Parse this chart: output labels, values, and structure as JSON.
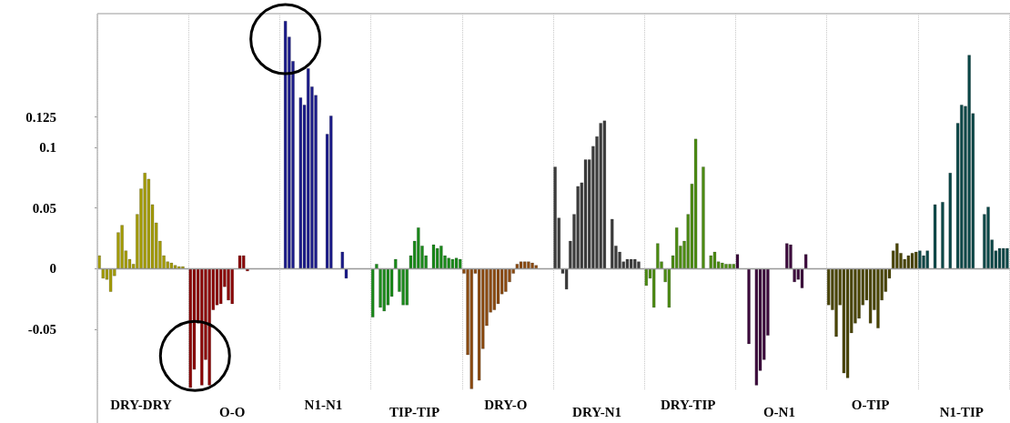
{
  "chart_data": {
    "type": "bar",
    "categories": [
      null,
      null,
      null,
      null,
      null,
      null,
      null,
      null,
      null,
      null,
      null,
      "DRY-DRY",
      null,
      null,
      null,
      null,
      null,
      null,
      null,
      null,
      null,
      null,
      null,
      null,
      null,
      null,
      null,
      null,
      null,
      null,
      null,
      null,
      null,
      null,
      null,
      "O-O",
      null,
      null,
      null,
      null,
      null,
      null,
      null,
      null,
      null,
      null,
      null,
      null,
      null,
      null,
      null,
      null,
      null,
      null,
      null,
      null,
      null,
      null,
      null,
      "N1-N1",
      null,
      null,
      null,
      null,
      null,
      null,
      null,
      null,
      null,
      null,
      null,
      null,
      null,
      null,
      null,
      null,
      null,
      null,
      null,
      null,
      null,
      null,
      null,
      "TIP-TIP",
      null,
      null,
      null,
      null,
      null,
      null,
      null,
      null,
      null,
      null,
      null,
      null,
      null,
      null,
      null,
      null,
      null,
      null,
      null,
      null,
      null,
      null,
      null,
      "DRY-O",
      null,
      null,
      null,
      null,
      null,
      null,
      null,
      null,
      null,
      null,
      null,
      null,
      null,
      null,
      null,
      null,
      null,
      null,
      null,
      null,
      null,
      null,
      null,
      "DRY-N1",
      null,
      null,
      null,
      null,
      null,
      null,
      null,
      null,
      null,
      null,
      null,
      null,
      null,
      null,
      null,
      null,
      null,
      null,
      null,
      null,
      null,
      null,
      null,
      "DRY-TIP",
      null,
      null,
      null,
      null,
      null,
      null,
      null,
      null,
      null,
      null,
      null,
      null,
      null,
      null,
      null,
      null,
      null,
      null,
      null,
      null,
      null,
      null,
      null,
      "O-N1",
      null,
      null,
      null,
      null,
      null,
      null,
      null,
      null,
      null,
      null,
      null,
      null,
      null,
      null,
      null,
      null,
      null,
      null,
      null,
      null,
      null,
      null,
      null,
      "O-TIP",
      null,
      null,
      null,
      null,
      null,
      null,
      null,
      null,
      null,
      null,
      null,
      null,
      null,
      null,
      null,
      null,
      null,
      null,
      null,
      null,
      null,
      null,
      null,
      "N1-TIP",
      null,
      null,
      null,
      null,
      null,
      null,
      null,
      null,
      null,
      null,
      null,
      null
    ],
    "values": [
      0.011,
      -0.008,
      -0.009,
      -0.019,
      -0.006,
      0.03,
      0.036,
      0.015,
      0.008,
      0.004,
      0.045,
      0.066,
      0.079,
      0.074,
      0.053,
      0.038,
      0.023,
      0.011,
      0.006,
      0.005,
      0.003,
      0.002,
      0.002,
      null,
      -0.098,
      -0.083,
      -0.045,
      -0.096,
      -0.075,
      -0.096,
      -0.034,
      -0.03,
      -0.029,
      -0.015,
      -0.026,
      -0.029,
      null,
      0.011,
      0.011,
      -0.002,
      null,
      null,
      null,
      null,
      null,
      null,
      null,
      null,
      null,
      0.204,
      0.191,
      0.171,
      null,
      0.141,
      0.135,
      0.165,
      0.15,
      0.143,
      null,
      null,
      0.111,
      0.126,
      null,
      null,
      0.014,
      -0.008,
      null,
      null,
      null,
      null,
      null,
      null,
      -0.04,
      0.004,
      -0.032,
      -0.035,
      -0.03,
      -0.023,
      0.008,
      -0.019,
      -0.03,
      -0.03,
      0.011,
      0.023,
      0.034,
      0.019,
      0.011,
      null,
      0.02,
      0.017,
      0.019,
      0.011,
      0.009,
      0.008,
      0.009,
      0.008,
      -0.004,
      -0.071,
      -0.099,
      -0.004,
      -0.092,
      -0.066,
      -0.047,
      -0.036,
      -0.034,
      -0.029,
      -0.021,
      -0.019,
      -0.011,
      -0.004,
      0.004,
      0.006,
      0.006,
      0.006,
      0.005,
      0.003,
      null,
      null,
      null,
      null,
      0.084,
      0.042,
      -0.004,
      -0.017,
      0.023,
      0.045,
      0.068,
      0.071,
      0.09,
      0.09,
      0.101,
      0.109,
      0.12,
      0.122,
      null,
      0.041,
      0.019,
      0.014,
      0.006,
      0.008,
      0.008,
      0.008,
      0.006,
      null,
      -0.014,
      -0.008,
      -0.032,
      0.021,
      0.006,
      -0.011,
      -0.032,
      0.011,
      0.034,
      0.019,
      0.023,
      0.045,
      0.07,
      0.107,
      null,
      0.084,
      null,
      0.011,
      0.014,
      0.006,
      0.005,
      0.004,
      0.004,
      0.004,
      0.012,
      null,
      null,
      -0.062,
      null,
      -0.096,
      -0.084,
      -0.075,
      -0.055,
      null,
      null,
      null,
      null,
      0.021,
      0.02,
      -0.011,
      -0.009,
      -0.016,
      0.012,
      null,
      null,
      null,
      null,
      null,
      -0.03,
      -0.034,
      -0.056,
      -0.03,
      -0.086,
      -0.09,
      -0.053,
      -0.045,
      -0.041,
      -0.03,
      -0.026,
      -0.045,
      -0.034,
      -0.049,
      -0.026,
      -0.019,
      -0.008,
      0.015,
      0.021,
      0.013,
      0.008,
      0.011,
      0.013,
      0.014,
      0.015,
      0.011,
      0.015,
      null,
      0.053,
      null,
      0.055,
      null,
      0.079,
      null,
      0.12,
      0.135,
      0.134,
      0.176,
      0.128,
      null,
      null,
      0.045,
      0.051,
      0.024,
      0.015,
      0.017,
      0.017,
      0.017
    ],
    "colors": [
      "#a39b00",
      "#a39b00",
      "#a39b00",
      "#a39b00",
      "#a39b00",
      "#a39b00",
      "#a39b00",
      "#a39b00",
      "#a39b00",
      "#a39b00",
      "#a39b00",
      "#a39b00",
      "#a39b00",
      "#a39b00",
      "#a39b00",
      "#a39b00",
      "#a39b00",
      "#a39b00",
      "#a39b00",
      "#a39b00",
      "#a39b00",
      "#a39b00",
      "#a39b00",
      "#a39b00",
      "#8b0000",
      "#8b0000",
      "#8b0000",
      "#8b0000",
      "#8b0000",
      "#8b0000",
      "#8b0000",
      "#8b0000",
      "#8b0000",
      "#8b0000",
      "#8b0000",
      "#8b0000",
      "#8b0000",
      "#8b0000",
      "#8b0000",
      "#8b0000",
      "#8b0000",
      "#8b0000",
      "#8b0000",
      "#8b0000",
      "#8b0000",
      "#8b0000",
      "#8b0000",
      "#8b0000",
      "#1c1c8a",
      "#1c1c8a",
      "#1c1c8a",
      "#1c1c8a",
      "#1c1c8a",
      "#1c1c8a",
      "#1c1c8a",
      "#1c1c8a",
      "#1c1c8a",
      "#1c1c8a",
      "#1c1c8a",
      "#1c1c8a",
      "#1c1c8a",
      "#1c1c8a",
      "#1c1c8a",
      "#1c1c8a",
      "#1c1c8a",
      "#1c1c8a",
      "#1c1c8a",
      "#1c1c8a",
      "#1c1c8a",
      "#1c1c8a",
      "#1c1c8a",
      "#1c1c8a",
      "#1a8a1a",
      "#1a8a1a",
      "#1a8a1a",
      "#1a8a1a",
      "#1a8a1a",
      "#1a8a1a",
      "#1a8a1a",
      "#1a8a1a",
      "#1a8a1a",
      "#1a8a1a",
      "#1a8a1a",
      "#1a8a1a",
      "#1a8a1a",
      "#1a8a1a",
      "#1a8a1a",
      "#1a8a1a",
      "#1a8a1a",
      "#1a8a1a",
      "#1a8a1a",
      "#1a8a1a",
      "#1a8a1a",
      "#1a8a1a",
      "#1a8a1a",
      "#1a8a1a",
      "#8b4a10",
      "#8b4a10",
      "#8b4a10",
      "#8b4a10",
      "#8b4a10",
      "#8b4a10",
      "#8b4a10",
      "#8b4a10",
      "#8b4a10",
      "#8b4a10",
      "#8b4a10",
      "#8b4a10",
      "#8b4a10",
      "#8b4a10",
      "#8b4a10",
      "#8b4a10",
      "#8b4a10",
      "#8b4a10",
      "#8b4a10",
      "#8b4a10",
      "#8b4a10",
      "#8b4a10",
      "#8b4a10",
      "#8b4a10",
      "#3c3c3c",
      "#3c3c3c",
      "#3c3c3c",
      "#3c3c3c",
      "#3c3c3c",
      "#3c3c3c",
      "#3c3c3c",
      "#3c3c3c",
      "#3c3c3c",
      "#3c3c3c",
      "#3c3c3c",
      "#3c3c3c",
      "#3c3c3c",
      "#3c3c3c",
      "#3c3c3c",
      "#3c3c3c",
      "#3c3c3c",
      "#3c3c3c",
      "#3c3c3c",
      "#3c3c3c",
      "#3c3c3c",
      "#3c3c3c",
      "#3c3c3c",
      "#3c3c3c",
      "#4c8c12",
      "#4c8c12",
      "#4c8c12",
      "#4c8c12",
      "#4c8c12",
      "#4c8c12",
      "#4c8c12",
      "#4c8c12",
      "#4c8c12",
      "#4c8c12",
      "#4c8c12",
      "#4c8c12",
      "#4c8c12",
      "#4c8c12",
      "#4c8c12",
      "#4c8c12",
      "#4c8c12",
      "#4c8c12",
      "#4c8c12",
      "#4c8c12",
      "#4c8c12",
      "#4c8c12",
      "#4c8c12",
      "#4c8c12",
      "#3d0a3d",
      "#3d0a3d",
      "#3d0a3d",
      "#3d0a3d",
      "#3d0a3d",
      "#3d0a3d",
      "#3d0a3d",
      "#3d0a3d",
      "#3d0a3d",
      "#3d0a3d",
      "#3d0a3d",
      "#3d0a3d",
      "#3d0a3d",
      "#3d0a3d",
      "#3d0a3d",
      "#3d0a3d",
      "#3d0a3d",
      "#3d0a3d",
      "#3d0a3d",
      "#3d0a3d",
      "#3d0a3d",
      "#3d0a3d",
      "#3d0a3d",
      "#3d0a3d",
      "#4a4500",
      "#4a4500",
      "#4a4500",
      "#4a4500",
      "#4a4500",
      "#4a4500",
      "#4a4500",
      "#4a4500",
      "#4a4500",
      "#4a4500",
      "#4a4500",
      "#4a4500",
      "#4a4500",
      "#4a4500",
      "#4a4500",
      "#4a4500",
      "#4a4500",
      "#4a4500",
      "#4a4500",
      "#4a4500",
      "#4a4500",
      "#4a4500",
      "#4a4500",
      "#4a4500",
      "#0b4848",
      "#0b4848",
      "#0b4848",
      "#0b4848",
      "#0b4848",
      "#0b4848",
      "#0b4848",
      "#0b4848",
      "#0b4848",
      "#0b4848",
      "#0b4848",
      "#0b4848",
      "#0b4848",
      "#0b4848",
      "#0b4848",
      "#0b4848",
      "#0b4848",
      "#0b4848",
      "#0b4848",
      "#0b4848",
      "#0b4848",
      "#0b4848",
      "#0b4848",
      "#0b4848"
    ],
    "ylim": [
      -0.1,
      0.21
    ],
    "yticks": [
      -0.05,
      0,
      0.05,
      0.1,
      0.125
    ],
    "grid": "x"
  }
}
